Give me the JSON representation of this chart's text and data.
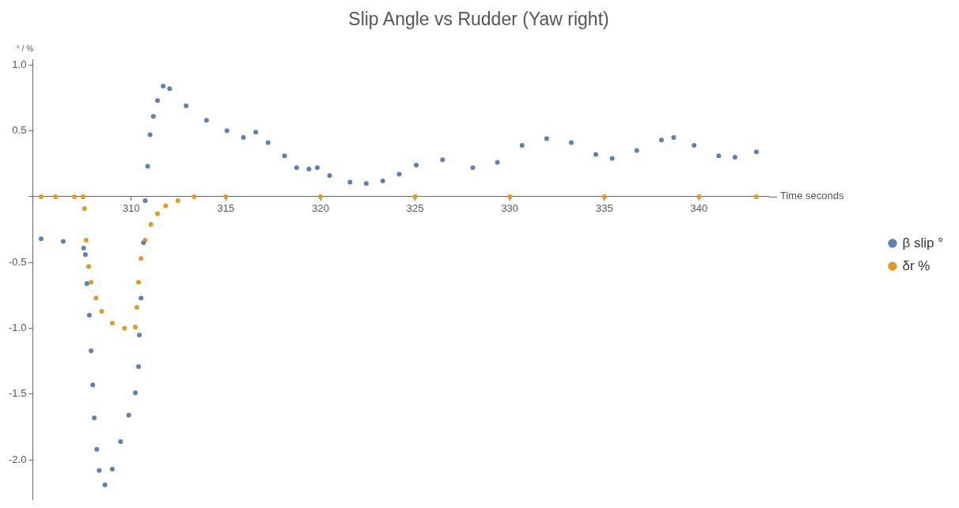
{
  "chart_data": {
    "type": "scatter",
    "title": "Slip Angle vs Rudder (Yaw right)",
    "xlabel": "Time seconds",
    "ylabel": "° / %",
    "xlim": [
      304.8,
      343.7
    ],
    "xticks": [
      310,
      315,
      320,
      325,
      330,
      335,
      340
    ],
    "ylim": [
      -2.3,
      1.04
    ],
    "yticks": [
      {
        "value": -2,
        "label": "-2.0"
      },
      {
        "value": -1.5,
        "label": "-1.5"
      },
      {
        "value": -1,
        "label": "-1.0"
      },
      {
        "value": -0.5,
        "label": "-0.5"
      },
      {
        "value": 0,
        "label": null
      },
      {
        "value": 0.5,
        "label": "0.5"
      },
      {
        "value": 1,
        "label": "1.0"
      }
    ],
    "grid": false,
    "legend": "right",
    "marker": "circle",
    "series": [
      {
        "name": "β slip °",
        "color": "#5e81b5",
        "x": [
          305.24,
          306.41,
          307.49,
          307.58,
          307.66,
          307.79,
          307.88,
          307.97,
          308.05,
          308.18,
          308.31,
          308.61,
          309.0,
          309.44,
          309.87,
          310.22,
          310.39,
          310.43,
          310.52,
          310.65,
          310.74,
          310.87,
          311.0,
          311.17,
          311.39,
          311.69,
          312.03,
          312.9,
          313.98,
          315.06,
          315.93,
          316.58,
          317.23,
          318.1,
          318.74,
          319.39,
          319.83,
          320.48,
          321.56,
          322.42,
          323.29,
          324.16,
          325.06,
          326.45,
          328.05,
          329.35,
          330.65,
          331.95,
          333.25,
          334.55,
          335.41,
          336.71,
          338.01,
          338.66,
          339.74,
          341.04,
          341.9,
          343.03
        ],
        "values": [
          -0.32,
          -0.34,
          -0.39,
          -0.44,
          -0.66,
          -0.9,
          -1.17,
          -1.43,
          -1.68,
          -1.92,
          -2.08,
          -2.19,
          -2.07,
          -1.86,
          -1.66,
          -1.49,
          -1.29,
          -1.05,
          -0.77,
          -0.35,
          -0.03,
          0.23,
          0.47,
          0.61,
          0.73,
          0.84,
          0.82,
          0.69,
          0.58,
          0.5,
          0.45,
          0.49,
          0.41,
          0.31,
          0.22,
          0.21,
          0.22,
          0.16,
          0.11,
          0.1,
          0.12,
          0.17,
          0.24,
          0.28,
          0.22,
          0.26,
          0.39,
          0.44,
          0.41,
          0.32,
          0.29,
          0.35,
          0.43,
          0.45,
          0.39,
          0.31,
          0.3,
          0.34
        ]
      },
      {
        "name": "δr %",
        "color": "#e19c24",
        "x": [
          305.24,
          306.0,
          307.0,
          307.45,
          307.53,
          307.62,
          307.75,
          307.88,
          308.14,
          308.44,
          309.0,
          309.65,
          310.22,
          310.3,
          310.39,
          310.52,
          310.74,
          311.04,
          311.39,
          311.82,
          312.47,
          313.33,
          315.0,
          320.0,
          325.0,
          330.0,
          335.0,
          340.0,
          343.03
        ],
        "values": [
          0,
          0,
          0,
          0,
          -0.09,
          -0.33,
          -0.53,
          -0.65,
          -0.77,
          -0.87,
          -0.96,
          -1.0,
          -0.99,
          -0.84,
          -0.65,
          -0.47,
          -0.33,
          -0.21,
          -0.13,
          -0.07,
          -0.03,
          0,
          0,
          0,
          0,
          0,
          0,
          0,
          0
        ]
      }
    ]
  }
}
